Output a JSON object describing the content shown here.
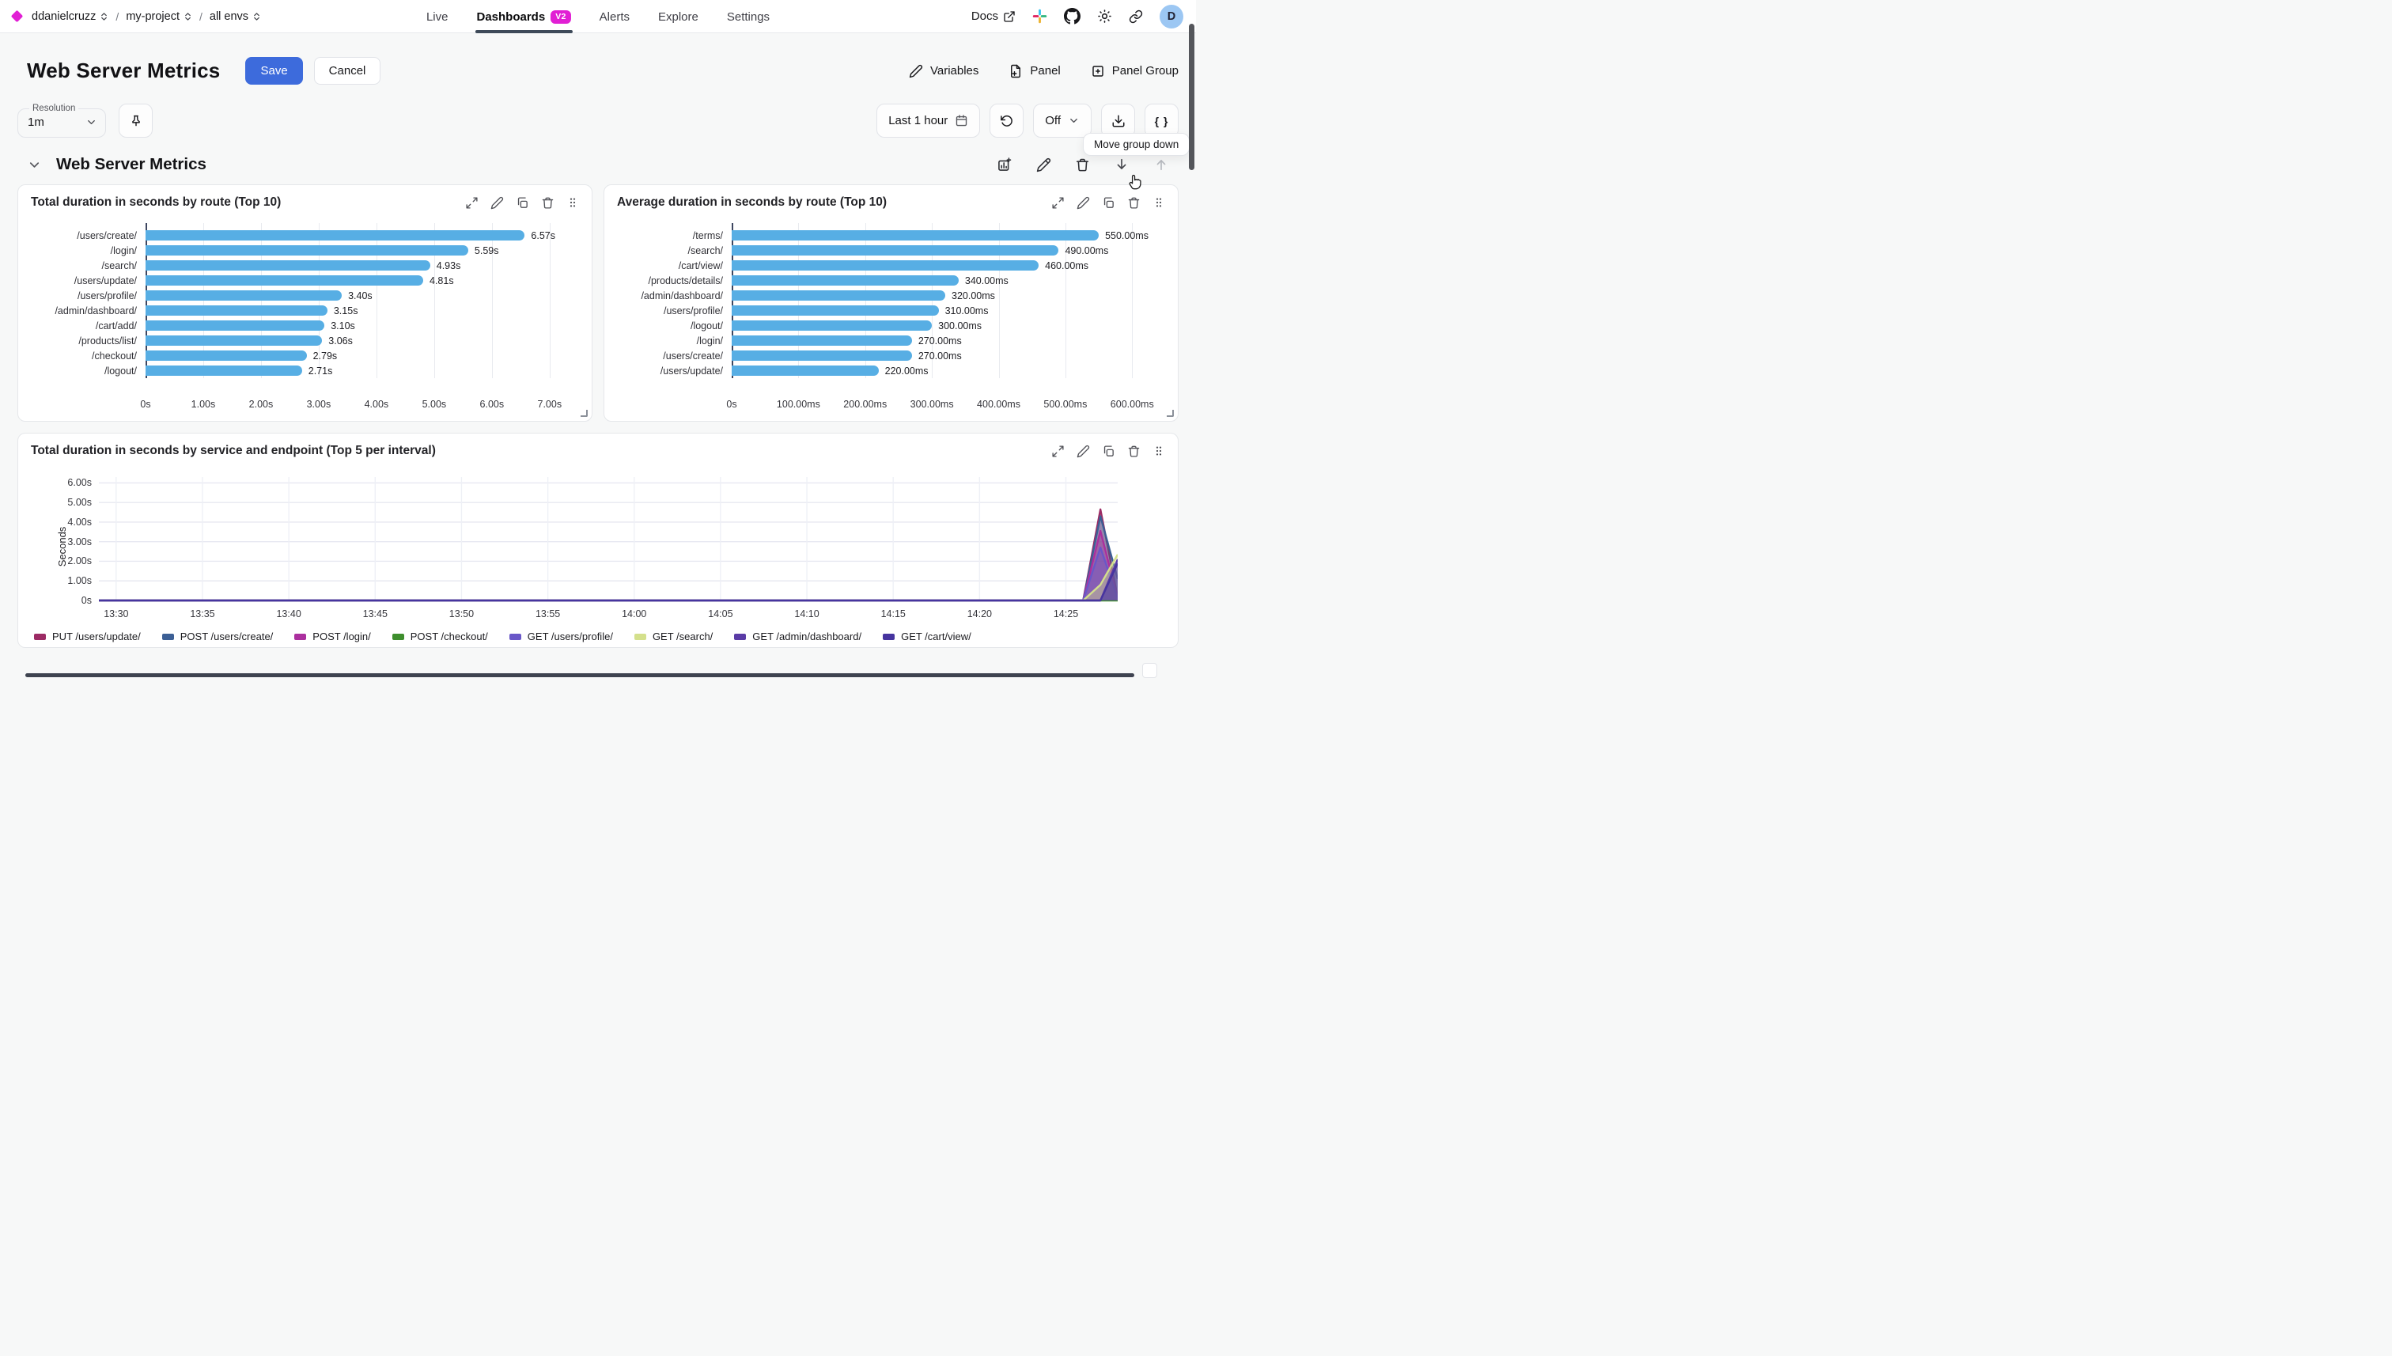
{
  "topbar": {
    "breadcrumbs": [
      {
        "label": "ddanielcruzz"
      },
      {
        "label": "my-project"
      },
      {
        "label": "all envs"
      }
    ],
    "tabs": [
      {
        "label": "Live",
        "active": false
      },
      {
        "label": "Dashboards",
        "badge": "V2",
        "active": true
      },
      {
        "label": "Alerts",
        "active": false
      },
      {
        "label": "Explore",
        "active": false
      },
      {
        "label": "Settings",
        "active": false
      }
    ],
    "docs_label": "Docs",
    "avatar_initial": "D"
  },
  "header": {
    "title": "Web Server Metrics",
    "save": "Save",
    "cancel": "Cancel",
    "variables": "Variables",
    "panel": "Panel",
    "panel_group": "Panel Group"
  },
  "toolbar": {
    "resolution_label": "Resolution",
    "resolution_value": "1m",
    "time_range": "Last 1 hour",
    "auto_refresh": "Off",
    "code_button": "{ }"
  },
  "tooltip": {
    "text": "Move group down"
  },
  "group": {
    "title": "Web Server Metrics"
  },
  "colors": {
    "accent_blue": "#3d6bdc",
    "bar_blue": "#57aee4",
    "badge_magenta": "#e11fd4",
    "tab_underline": "#3e4a59",
    "axis_line": "#3d4660"
  },
  "icons": {
    "logo": "magenta-diamond",
    "breadcrumb_caret": "up-down-chevrons",
    "docs": "external-link",
    "community": "slack",
    "source": "github",
    "theme": "sun",
    "share": "link",
    "variables": "pencil",
    "add_panel": "file-plus",
    "add_panel_group": "square-plus",
    "resolution_pin": "pushpin",
    "time_range": "calendar",
    "refresh": "rotate-ccw",
    "export": "download",
    "code": "braces",
    "group_collapse": "chevron-down",
    "group_add_chart": "chart-plus",
    "group_edit": "pencil",
    "group_delete": "trash",
    "group_move_down": "arrow-down",
    "group_move_up": "arrow-up",
    "panel_expand": "diagonal-arrows",
    "panel_edit": "pencil",
    "panel_copy": "copy",
    "panel_delete": "trash",
    "panel_drag": "grip-dots",
    "pointer": "hand-cursor"
  },
  "chart_data": [
    {
      "type": "bar",
      "title": "Total duration in seconds by route (Top 10)",
      "orientation": "horizontal",
      "categories": [
        "/users/create/",
        "/login/",
        "/search/",
        "/users/update/",
        "/users/profile/",
        "/admin/dashboard/",
        "/cart/add/",
        "/products/list/",
        "/checkout/",
        "/logout/"
      ],
      "values": [
        6.57,
        5.59,
        4.93,
        4.81,
        3.4,
        3.15,
        3.1,
        3.06,
        2.79,
        2.71
      ],
      "value_labels": [
        "6.57s",
        "5.59s",
        "4.93s",
        "4.81s",
        "3.40s",
        "3.15s",
        "3.10s",
        "3.06s",
        "2.79s",
        "2.71s"
      ],
      "x_ticks": [
        "0s",
        "1.00s",
        "2.00s",
        "3.00s",
        "4.00s",
        "5.00s",
        "6.00s",
        "7.00s"
      ],
      "x_tick_values": [
        0,
        1,
        2,
        3,
        4,
        5,
        6,
        7
      ],
      "axis_max": 7.4,
      "unit": "s",
      "bar_color": "#57aee4"
    },
    {
      "type": "bar",
      "title": "Average duration in seconds by route (Top 10)",
      "orientation": "horizontal",
      "categories": [
        "/terms/",
        "/search/",
        "/cart/view/",
        "/products/details/",
        "/admin/dashboard/",
        "/users/profile/",
        "/logout/",
        "/login/",
        "/users/create/",
        "/users/update/"
      ],
      "values": [
        550,
        490,
        460,
        340,
        320,
        310,
        300,
        270,
        270,
        220
      ],
      "value_labels": [
        "550.00ms",
        "490.00ms",
        "460.00ms",
        "340.00ms",
        "320.00ms",
        "310.00ms",
        "300.00ms",
        "270.00ms",
        "270.00ms",
        "220.00ms"
      ],
      "x_ticks": [
        "0s",
        "100.00ms",
        "200.00ms",
        "300.00ms",
        "400.00ms",
        "500.00ms",
        "600.00ms"
      ],
      "x_tick_values": [
        0,
        100,
        200,
        300,
        400,
        500,
        600
      ],
      "axis_max": 640,
      "unit": "ms",
      "bar_color": "#57aee4"
    },
    {
      "type": "area",
      "title": "Total duration in seconds by service and endpoint (Top 5 per interval)",
      "ylabel": "Seconds",
      "y_ticks": [
        "0s",
        "1.00s",
        "2.00s",
        "3.00s",
        "4.00s",
        "5.00s",
        "6.00s"
      ],
      "y_tick_values": [
        0,
        1,
        2,
        3,
        4,
        5,
        6
      ],
      "ylim": [
        0,
        6.3
      ],
      "x_domain": [
        "13:29",
        "14:28"
      ],
      "x_ticks": [
        "13:30",
        "13:35",
        "13:40",
        "13:45",
        "13:50",
        "13:55",
        "14:00",
        "14:05",
        "14:10",
        "14:15",
        "14:20",
        "14:25"
      ],
      "grid": true,
      "legend_position": "bottom",
      "series": [
        {
          "name": "PUT /users/update/",
          "color": "#9c2b64",
          "points": [
            [
              "13:29",
              0
            ],
            [
              "14:26",
              0
            ],
            [
              "14:27",
              4.65
            ],
            [
              "14:28",
              0.15
            ]
          ]
        },
        {
          "name": "POST /users/create/",
          "color": "#3c5f95",
          "points": [
            [
              "13:29",
              0
            ],
            [
              "14:26",
              0
            ],
            [
              "14:27",
              4.3
            ],
            [
              "14:28",
              1.1
            ]
          ]
        },
        {
          "name": "POST /login/",
          "color": "#ab2f9e",
          "points": [
            [
              "13:29",
              0
            ],
            [
              "14:26",
              0
            ],
            [
              "14:27",
              3.55
            ],
            [
              "14:28",
              0.1
            ]
          ]
        },
        {
          "name": "POST /checkout/",
          "color": "#3e8e2d",
          "points": [
            [
              "13:29",
              0
            ],
            [
              "14:28",
              0
            ]
          ]
        },
        {
          "name": "GET /users/profile/",
          "color": "#6957c8",
          "points": [
            [
              "13:29",
              0
            ],
            [
              "14:26",
              0
            ],
            [
              "14:27",
              2.7
            ],
            [
              "14:28",
              0.1
            ]
          ]
        },
        {
          "name": "GET /search/",
          "color": "#d4e08c",
          "points": [
            [
              "13:29",
              0
            ],
            [
              "14:26",
              0
            ],
            [
              "14:27",
              0.8
            ],
            [
              "14:28",
              2.35
            ]
          ]
        },
        {
          "name": "GET /admin/dashboard/",
          "color": "#5a3ba6",
          "points": [
            [
              "13:29",
              0
            ],
            [
              "14:27",
              0
            ],
            [
              "14:28",
              2.1
            ]
          ]
        },
        {
          "name": "GET /cart/view/",
          "color": "#46349f",
          "points": [
            [
              "13:29",
              0
            ],
            [
              "14:27",
              0
            ],
            [
              "14:28",
              1.9
            ]
          ]
        }
      ]
    }
  ]
}
